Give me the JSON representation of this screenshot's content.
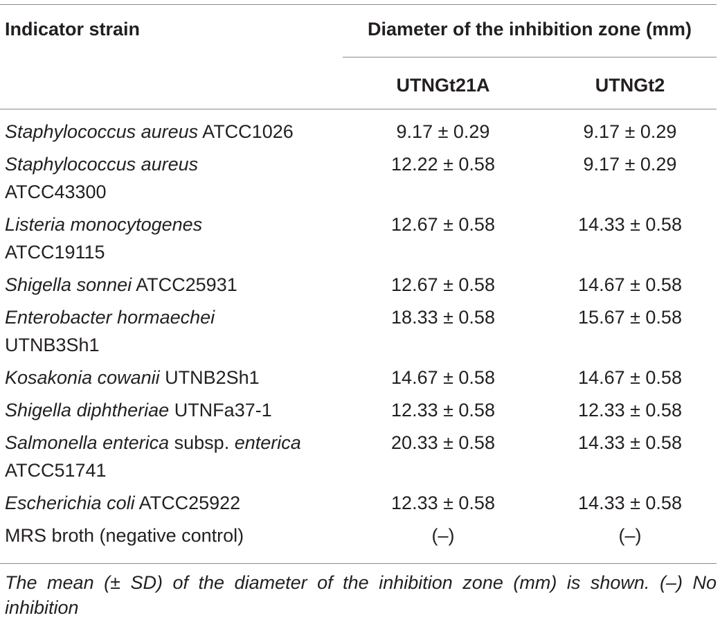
{
  "table": {
    "header": {
      "strain_col": "Indicator strain",
      "group_label": "Diameter of the inhibition zone (mm)",
      "col_a": "UTNGt21A",
      "col_b": "UTNGt2"
    },
    "rows": [
      {
        "strain_italic": "Staphylococcus aureus",
        "strain_rest": " ATCC1026",
        "a": "9.17 ± 0.29",
        "b": "9.17 ± 0.29"
      },
      {
        "strain_italic": "Staphylococcus aureus",
        "strain_rest": " ATCC43300",
        "a": "12.22 ± 0.58",
        "b": "9.17 ± 0.29"
      },
      {
        "strain_italic": "Listeria monocytogenes",
        "strain_rest": " ATCC19115",
        "a": "12.67 ± 0.58",
        "b": "14.33 ± 0.58"
      },
      {
        "strain_italic": "Shigella sonnei",
        "strain_rest": " ATCC25931",
        "a": "12.67 ± 0.58",
        "b": "14.67 ± 0.58"
      },
      {
        "strain_italic": "Enterobacter hormaechei",
        "strain_rest": " UTNB3Sh1",
        "a": "18.33 ± 0.58",
        "b": "15.67 ± 0.58"
      },
      {
        "strain_italic": "Kosakonia cowanii",
        "strain_rest": " UTNB2Sh1",
        "a": "14.67 ± 0.58",
        "b": "14.67 ± 0.58"
      },
      {
        "strain_italic": "Shigella diphtheriae",
        "strain_rest": " UTNFa37-1",
        "a": "12.33 ± 0.58",
        "b": "12.33 ± 0.58"
      },
      {
        "strain_italic": "Salmonella enterica",
        "strain_mid": " subsp. ",
        "strain_italic2": "enterica",
        "strain_rest": " ATCC51741",
        "a": "20.33 ± 0.58",
        "b": "14.33 ± 0.58"
      },
      {
        "strain_italic": "Escherichia coli",
        "strain_rest": " ATCC25922",
        "a": "12.33 ± 0.58",
        "b": "14.33 ± 0.58"
      },
      {
        "strain_plain": "MRS broth (negative control)",
        "a": "(–)",
        "b": "(–)"
      }
    ],
    "footnote": "The mean (± SD) of the diameter of the inhibition zone (mm) is shown. (–) No inhibition"
  }
}
